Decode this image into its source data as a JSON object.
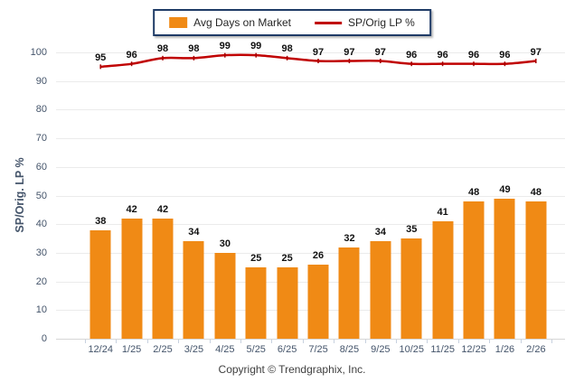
{
  "legend": {
    "items": [
      {
        "label": "Avg Days on Market",
        "swatch": "bar-swatch"
      },
      {
        "label": "SP/Orig LP %",
        "swatch": "line-swatch"
      }
    ]
  },
  "footer": {
    "text": "Copyright © Trendgraphix, Inc."
  },
  "colors": {
    "bar": "#F08A15",
    "line": "#C00000",
    "line_marker": "#A50000",
    "grid": "#EBEBEB",
    "axis_line": "#D6D6D6",
    "tick_label": "#44546A",
    "data_label": "#111111",
    "legend_border": "#1F3B66"
  },
  "chart_data": {
    "type": "combo",
    "categories": [
      "12/24",
      "1/25",
      "2/25",
      "3/25",
      "4/25",
      "5/25",
      "6/25",
      "7/25",
      "8/25",
      "9/25",
      "10/25",
      "11/25",
      "12/25",
      "1/26",
      "2/26"
    ],
    "series": [
      {
        "name": "Avg Days on Market",
        "type": "bar",
        "color": "#F08A15",
        "values": [
          38,
          42,
          42,
          34,
          30,
          25,
          25,
          26,
          32,
          34,
          35,
          41,
          48,
          49,
          48
        ]
      },
      {
        "name": "SP/Orig LP %",
        "type": "line",
        "color": "#C00000",
        "values": [
          95,
          96,
          98,
          98,
          99,
          99,
          98,
          97,
          97,
          97,
          96,
          96,
          96,
          96,
          97
        ]
      }
    ],
    "title": "",
    "xlabel": "",
    "ylabel": "SP/Orig. LP %",
    "ylim": [
      0,
      100
    ],
    "y_ticks": [
      0,
      10,
      20,
      30,
      40,
      50,
      60,
      70,
      80,
      90,
      100
    ],
    "grid": true,
    "legend_position": "top-center",
    "data_labels": true
  }
}
